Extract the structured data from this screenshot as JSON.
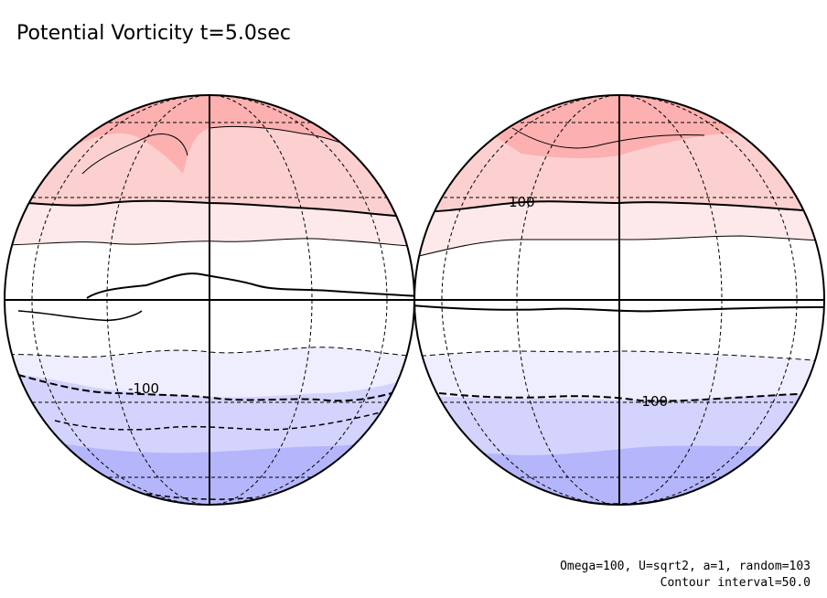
{
  "title": "Potential Vorticity t=5.0sec",
  "footer": {
    "params": "Omega=100, U=sqrt2, a=1, random=103",
    "contour_interval": "Contour interval=50.0"
  },
  "contour_labels": {
    "left_negative": "-100",
    "right_positive": "100",
    "right_negative": "-100"
  },
  "colors": {
    "band_pos_high": "#fdb0b0",
    "band_pos_mid": "#fdd0d0",
    "band_pos_low": "#fde9e9",
    "band_zero": "#ffffff",
    "band_neg_low": "#eeeeff",
    "band_neg_mid": "#d3d3fd",
    "band_neg_high": "#b5b5fb"
  }
}
